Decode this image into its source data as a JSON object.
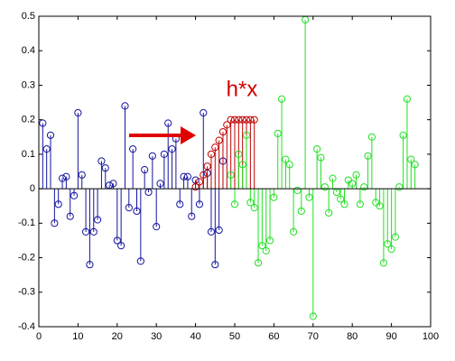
{
  "chart_data": {
    "type": "stem",
    "annotations": [
      "h*x"
    ],
    "xlim": [
      0,
      100
    ],
    "xticks": [
      0,
      10,
      20,
      30,
      40,
      50,
      60,
      70,
      80,
      90,
      100
    ],
    "ylim": [
      -0.4,
      0.5
    ],
    "yticks": [
      -0.4,
      -0.3,
      -0.2,
      -0.1,
      0,
      0.1,
      0.2,
      0.3,
      0.4,
      0.5
    ],
    "series": [
      {
        "color": "#1414a0",
        "x": [
          1,
          2,
          3,
          4,
          5,
          6,
          7,
          8,
          9,
          10,
          11,
          12,
          13,
          14,
          15,
          16,
          17,
          18,
          19,
          20,
          21,
          22,
          23,
          24,
          25,
          26,
          27,
          28,
          29,
          30,
          31,
          32,
          33,
          34,
          35,
          36,
          37,
          38,
          39,
          40,
          41,
          42,
          43,
          44,
          45,
          46,
          47
        ],
        "values": [
          0.19,
          0.115,
          0.155,
          -0.1,
          -0.045,
          0.03,
          0.035,
          -0.08,
          -0.02,
          0.22,
          0.04,
          -0.125,
          -0.22,
          -0.125,
          -0.09,
          0.08,
          0.06,
          0.01,
          0.015,
          -0.15,
          -0.165,
          0.24,
          -0.055,
          0.115,
          -0.065,
          -0.21,
          0.055,
          -0.01,
          0.095,
          -0.11,
          0.015,
          0.1,
          0.19,
          0.115,
          0.145,
          -0.045,
          0.035,
          0.035,
          -0.08,
          0.025,
          -0.045,
          0.22,
          0.045,
          -0.125,
          -0.22,
          -0.12,
          0.08
        ]
      },
      {
        "color": "#c00000",
        "x": [
          40,
          41,
          42,
          43,
          44,
          45,
          46,
          47,
          48,
          49,
          50,
          51,
          52,
          53,
          54,
          55
        ],
        "values": [
          0.005,
          0.02,
          0.04,
          0.065,
          0.1,
          0.12,
          0.14,
          0.165,
          0.185,
          0.2,
          0.2,
          0.2,
          0.2,
          0.2,
          0.2,
          0.2
        ]
      },
      {
        "color": "#22e022",
        "x": [
          49,
          50,
          51,
          52,
          53,
          54,
          55,
          56,
          57,
          58,
          59,
          60,
          61,
          62,
          63,
          64,
          65,
          66,
          67,
          68,
          69,
          70,
          71,
          72,
          73,
          74,
          75,
          76,
          77,
          78,
          79,
          80,
          81,
          82,
          83,
          84,
          85,
          86,
          87,
          88,
          89,
          90,
          91,
          92,
          93,
          94,
          95,
          96
        ],
        "values": [
          0.04,
          -0.045,
          0.1,
          0.07,
          0.155,
          -0.04,
          -0.055,
          -0.215,
          -0.165,
          -0.18,
          -0.15,
          -0.025,
          0.16,
          0.26,
          0.085,
          0.07,
          -0.125,
          -0.005,
          -0.065,
          0.49,
          -0.025,
          -0.37,
          0.115,
          0.09,
          0.005,
          -0.07,
          0.03,
          -0.01,
          -0.03,
          -0.045,
          0.025,
          0.015,
          0.04,
          -0.045,
          0.005,
          0.095,
          0.15,
          -0.04,
          -0.05,
          -0.215,
          -0.16,
          -0.175,
          -0.14,
          0.005,
          0.155,
          0.26,
          0.085,
          0.07
        ]
      }
    ]
  }
}
